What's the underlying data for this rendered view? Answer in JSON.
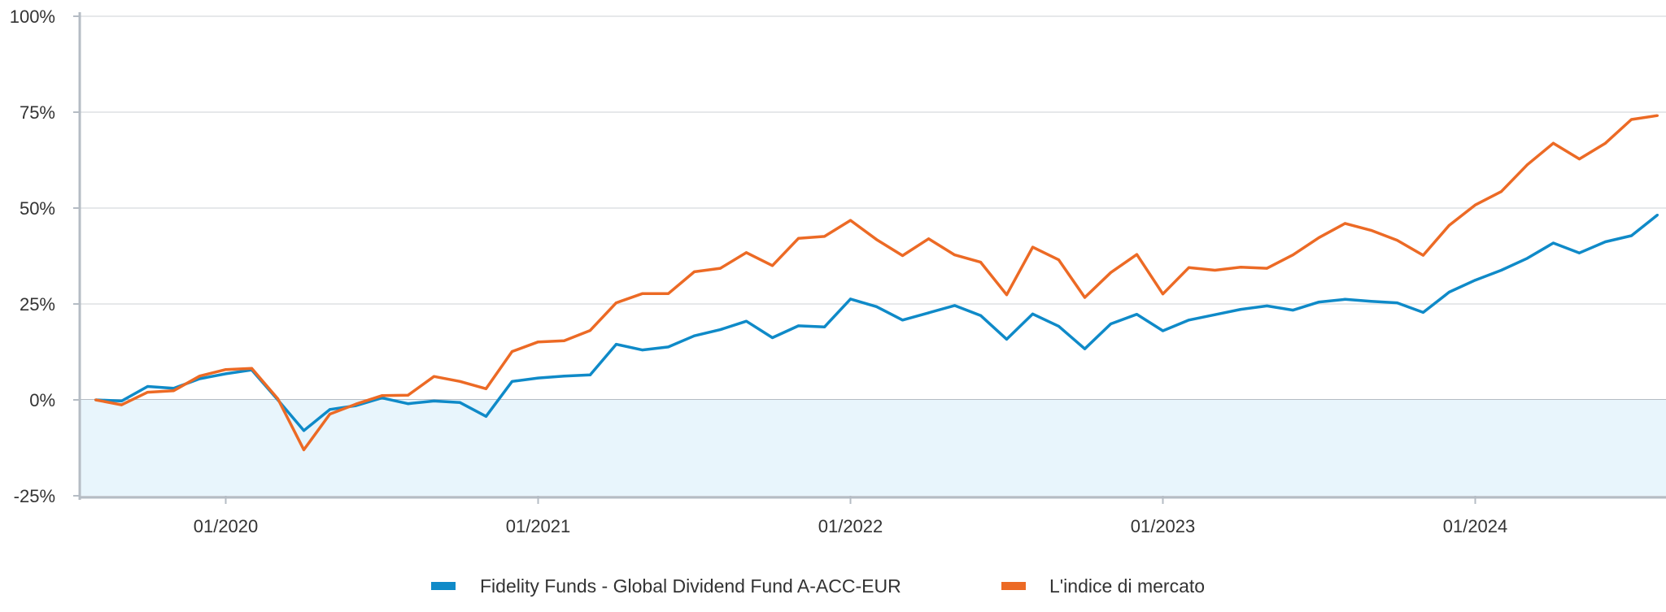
{
  "chart_data": {
    "type": "line",
    "title": "",
    "xlabel": "",
    "ylabel": "",
    "x_start": "08/2019",
    "x_end": "08/2024",
    "x_frequency": "monthly",
    "x_tick_labels": [
      "01/2020",
      "01/2021",
      "01/2022",
      "01/2023",
      "01/2024"
    ],
    "y_tick_labels": [
      "100%",
      "75%",
      "50%",
      "25%",
      "0%",
      "-25%"
    ],
    "ylim": [
      -25,
      100
    ],
    "y_ticks": [
      100,
      75,
      50,
      25,
      0,
      -25
    ],
    "grid": "horizontal",
    "negative_region_fill": "#e8f5fc",
    "legend_position": "bottom",
    "series": [
      {
        "name": "Fidelity Funds - Global Dividend Fund A-ACC-EUR",
        "color": "#0f8ac8",
        "values": [
          0,
          -0.3,
          3.5,
          3,
          5.5,
          6.8,
          7.8,
          0,
          -8,
          -2.5,
          -1.5,
          0.5,
          -1,
          -0.3,
          -0.7,
          -4.3,
          4.8,
          5.7,
          6.2,
          6.5,
          14.5,
          13,
          13.8,
          16.7,
          18.3,
          20.5,
          16.2,
          19.3,
          19,
          26.3,
          24.3,
          20.8,
          22.7,
          24.6,
          22,
          15.8,
          22.4,
          19.2,
          13.3,
          19.8,
          22.3,
          18,
          20.8,
          22.2,
          23.6,
          24.5,
          23.4,
          25.5,
          26.2,
          25.7,
          25.3,
          22.8,
          28.1,
          31.2,
          33.8,
          36.9,
          40.9,
          38.3,
          41.2,
          42.8,
          48.2
        ]
      },
      {
        "name": "L'indice di mercato",
        "color": "#ec6a25",
        "values": [
          0,
          -1.3,
          2,
          2.4,
          6.2,
          7.9,
          8.2,
          0.3,
          -13,
          -3.7,
          -1.1,
          1.1,
          1.2,
          6.1,
          4.8,
          2.9,
          12.6,
          15.1,
          15.4,
          18.1,
          25.3,
          27.7,
          27.7,
          33.4,
          34.3,
          38.4,
          35,
          42.1,
          42.6,
          46.8,
          41.8,
          37.6,
          42,
          37.8,
          35.9,
          27.4,
          39.8,
          36.5,
          26.7,
          33.2,
          37.9,
          27.6,
          34.5,
          33.8,
          34.6,
          34.3,
          37.8,
          42.3,
          46,
          44.2,
          41.6,
          37.7,
          45.5,
          50.8,
          54.3,
          61.3,
          66.9,
          62.8,
          66.9,
          73.1,
          74.1
        ]
      }
    ]
  }
}
